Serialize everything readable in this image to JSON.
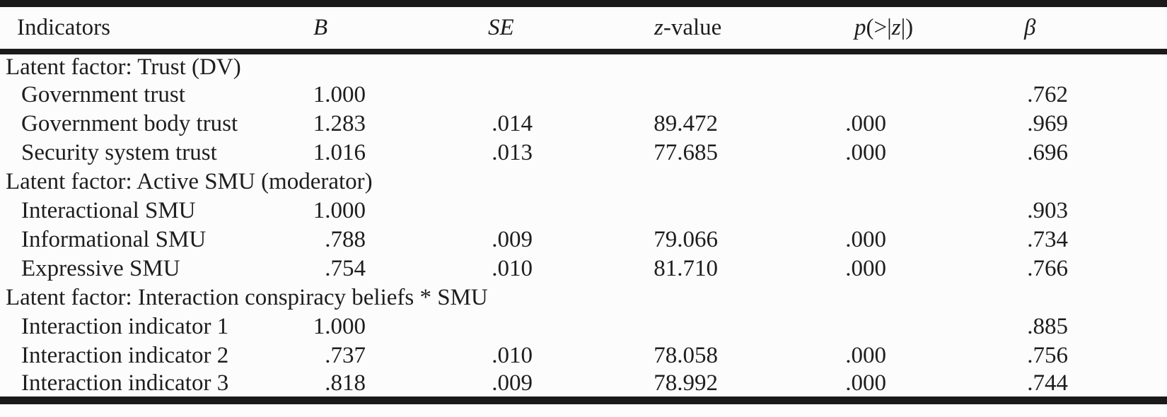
{
  "colors": {
    "background": "#fcfcfc",
    "text": "#1e1e1e",
    "border": "#1a1a1a"
  },
  "table": {
    "columns": [
      {
        "key": "indicator",
        "parts": [
          {
            "text": "Indicators",
            "italic": false
          }
        ]
      },
      {
        "key": "B",
        "parts": [
          {
            "text": "B",
            "italic": true
          }
        ]
      },
      {
        "key": "SE",
        "parts": [
          {
            "text": "SE",
            "italic": true
          }
        ]
      },
      {
        "key": "z",
        "parts": [
          {
            "text": "z",
            "italic": true
          },
          {
            "text": "-value",
            "italic": false
          }
        ]
      },
      {
        "key": "p",
        "parts": [
          {
            "text": "p",
            "italic": true
          },
          {
            "text": "(>|",
            "italic": false
          },
          {
            "text": "z",
            "italic": true
          },
          {
            "text": "|)",
            "italic": false
          }
        ]
      },
      {
        "key": "beta",
        "parts": [
          {
            "text": "β",
            "italic": true
          }
        ]
      }
    ],
    "sections": [
      {
        "title": "Latent factor: Trust (DV)",
        "rows": [
          {
            "indicator": "Government trust",
            "B": "1.000",
            "SE": "",
            "z": "",
            "p": "",
            "beta": ".762"
          },
          {
            "indicator": "Government body trust",
            "B": "1.283",
            "SE": ".014",
            "z": "89.472",
            "p": ".000",
            "beta": ".969"
          },
          {
            "indicator": "Security system trust",
            "B": "1.016",
            "SE": ".013",
            "z": "77.685",
            "p": ".000",
            "beta": ".696"
          }
        ]
      },
      {
        "title": "Latent factor: Active SMU (moderator)",
        "rows": [
          {
            "indicator": "Interactional SMU",
            "B": "1.000",
            "SE": "",
            "z": "",
            "p": "",
            "beta": ".903"
          },
          {
            "indicator": "Informational SMU",
            "B": ".788",
            "SE": ".009",
            "z": "79.066",
            "p": ".000",
            "beta": ".734"
          },
          {
            "indicator": "Expressive SMU",
            "B": ".754",
            "SE": ".010",
            "z": "81.710",
            "p": ".000",
            "beta": ".766"
          }
        ]
      },
      {
        "title": "Latent factor: Interaction conspiracy beliefs * SMU",
        "rows": [
          {
            "indicator": "Interaction indicator 1",
            "B": "1.000",
            "SE": "",
            "z": "",
            "p": "",
            "beta": ".885"
          },
          {
            "indicator": "Interaction indicator 2",
            "B": ".737",
            "SE": ".010",
            "z": "78.058",
            "p": ".000",
            "beta": ".756"
          },
          {
            "indicator": "Interaction indicator 3",
            "B": ".818",
            "SE": ".009",
            "z": "78.992",
            "p": ".000",
            "beta": ".744"
          }
        ]
      }
    ]
  }
}
